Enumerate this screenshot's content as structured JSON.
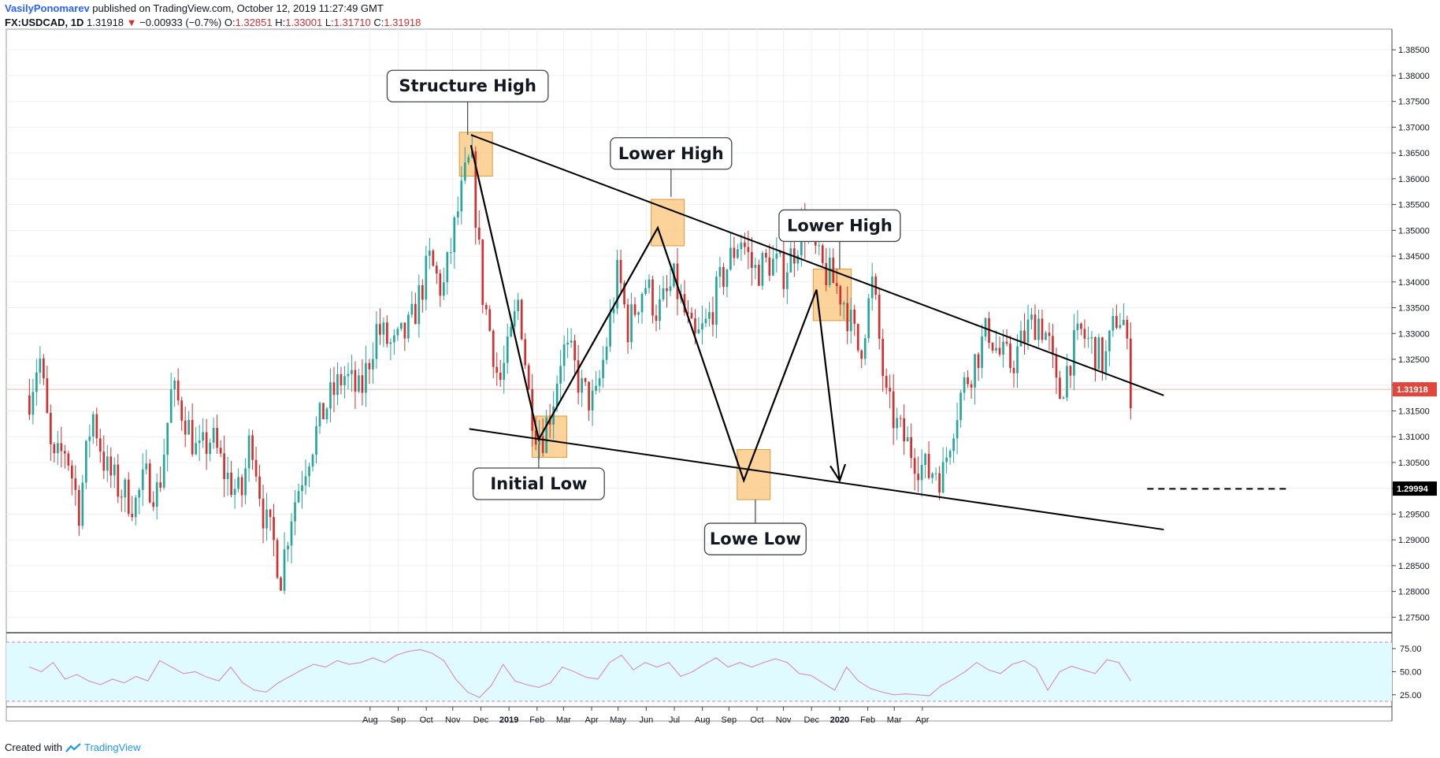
{
  "header": {
    "author": "VasilyPonomarev",
    "published_text": " published on TradingView.com, October 12, 2019 11:27:49 GMT"
  },
  "ohlc": {
    "symbol": "FX:USDCAD, 1D",
    "last": "1.31918",
    "arrow": "▼",
    "change": "−0.00933 (−0.7%)",
    "o_label": "O:",
    "o_value": "1.32851",
    "h_label": "H:",
    "h_value": "1.33001",
    "l_label": "L:",
    "l_value": "1.31710",
    "c_label": "C:",
    "c_value": "1.31918"
  },
  "footer": {
    "created_with": "Created with",
    "brand": "TradingView"
  },
  "colors": {
    "up": "#26a69a",
    "down": "#d32f2f",
    "box_fill": "#fbc57a",
    "box_stroke": "#e0973a",
    "rsi_band": "#e0fbff",
    "rsi_line": "#d592c8",
    "price_tag": "#e0463b",
    "grid": "#eef0f3"
  },
  "chart_data": {
    "type": "candlestick",
    "price_axis": {
      "ylim": [
        1.272,
        1.389
      ],
      "ticks": [
        "1.27500",
        "1.28000",
        "1.28500",
        "1.29000",
        "1.29500",
        "1.30000",
        "1.30500",
        "1.31000",
        "1.31500",
        "1.32000",
        "1.32500",
        "1.33000",
        "1.33500",
        "1.34000",
        "1.34500",
        "1.35000",
        "1.35500",
        "1.36000",
        "1.36500",
        "1.37000",
        "1.37500",
        "1.38000",
        "1.38500"
      ],
      "last_price_label": "1.31918",
      "target_label": "1.29994"
    },
    "time_axis": {
      "labels": [
        "Aug",
        "Sep",
        "Oct",
        "Nov",
        "Dec",
        "2019",
        "Feb",
        "Mar",
        "Apr",
        "May",
        "Jun",
        "Jul",
        "Aug",
        "Sep",
        "Oct",
        "Nov",
        "Dec",
        "2020",
        "Feb",
        "Mar",
        "Apr"
      ],
      "bold_labels": [
        "2019",
        "2020"
      ]
    },
    "rsi_axis": {
      "ticks": [
        "25.00",
        "50.00",
        "75.00"
      ],
      "ylim": [
        18,
        82
      ]
    },
    "price_path": [
      [
        2018.55,
        1.318
      ],
      [
        2018.58,
        1.326
      ],
      [
        2018.62,
        1.304
      ],
      [
        2018.66,
        1.308
      ],
      [
        2018.7,
        1.296
      ],
      [
        2018.74,
        1.315
      ],
      [
        2018.78,
        1.304
      ],
      [
        2018.82,
        1.3
      ],
      [
        2018.87,
        1.297
      ],
      [
        2018.9,
        1.302
      ],
      [
        2018.94,
        1.299
      ],
      [
        2018.98,
        1.319
      ],
      [
        2019.02,
        1.314
      ],
      [
        2019.06,
        1.306
      ],
      [
        2019.1,
        1.31
      ],
      [
        2019.14,
        1.303
      ],
      [
        2019.19,
        1.298
      ],
      [
        2019.22,
        1.311
      ],
      [
        2019.26,
        1.294
      ],
      [
        2019.29,
        1.289
      ],
      [
        2019.31,
        1.283
      ],
      [
        2019.34,
        1.295
      ],
      [
        2019.39,
        1.306
      ],
      [
        2019.44,
        1.315
      ],
      [
        2019.5,
        1.322
      ],
      [
        2019.55,
        1.318
      ],
      [
        2019.6,
        1.331
      ],
      [
        2019.65,
        1.327
      ],
      [
        2019.7,
        1.331
      ],
      [
        2019.76,
        1.344
      ],
      [
        2019.8,
        1.338
      ],
      [
        2019.84,
        1.352
      ],
      [
        2019.87,
        1.361
      ],
      [
        2019.885,
        1.364
      ],
      [
        2019.89,
        1.361
      ],
      [
        2019.905,
        1.349
      ],
      [
        2019.92,
        1.338
      ],
      [
        2019.95,
        1.328
      ],
      [
        2019.97,
        1.32
      ],
      [
        2020.0,
        1.327
      ],
      [
        2020.03,
        1.337
      ],
      [
        2020.06,
        1.318
      ],
      [
        2020.08,
        1.312
      ],
      [
        2020.1,
        1.31
      ],
      [
        2020.13,
        1.316
      ],
      [
        2020.16,
        1.327
      ],
      [
        2020.19,
        1.325
      ],
      [
        2020.22,
        1.319
      ],
      [
        2020.26,
        1.316
      ],
      [
        2020.3,
        1.33
      ],
      [
        2020.33,
        1.342
      ],
      [
        2020.36,
        1.331
      ],
      [
        2020.41,
        1.34
      ],
      [
        2020.45,
        1.334
      ],
      [
        2020.5,
        1.34
      ],
      [
        2020.56,
        1.328
      ],
      [
        2020.6,
        1.332
      ],
      [
        2020.64,
        1.34
      ],
      [
        2020.7,
        1.349
      ],
      [
        2020.74,
        1.342
      ],
      [
        2020.79,
        1.344
      ],
      [
        2020.83,
        1.342
      ],
      [
        2020.86,
        1.346
      ],
      [
        2020.89,
        1.351
      ],
      [
        2020.91,
        1.349
      ],
      [
        2020.94,
        1.343
      ],
      [
        2020.97,
        1.341
      ],
      [
        2021.01,
        1.337
      ],
      [
        2021.06,
        1.326
      ],
      [
        2021.1,
        1.34
      ],
      [
        2021.14,
        1.317
      ],
      [
        2021.18,
        1.311
      ],
      [
        2021.22,
        1.307
      ],
      [
        2021.25,
        1.304
      ],
      [
        2021.27,
        1.303
      ],
      [
        2021.29,
        1.304
      ],
      [
        2021.31,
        1.302
      ],
      [
        2021.34,
        1.312
      ],
      [
        2021.37,
        1.319
      ],
      [
        2021.41,
        1.325
      ],
      [
        2021.45,
        1.331
      ],
      [
        2021.48,
        1.326
      ],
      [
        2021.52,
        1.324
      ],
      [
        2021.57,
        1.331
      ],
      [
        2021.6,
        1.333
      ],
      [
        2021.63,
        1.329
      ],
      [
        2021.66,
        1.317
      ],
      [
        2021.7,
        1.326
      ],
      [
        2021.73,
        1.33
      ],
      [
        2021.77,
        1.327
      ],
      [
        2021.8,
        1.324
      ],
      [
        2021.84,
        1.334
      ],
      [
        2021.86,
        1.332
      ],
      [
        2021.88,
        1.319
      ]
    ],
    "rsi_values": [
      55,
      50,
      60,
      42,
      47,
      40,
      36,
      42,
      38,
      45,
      40,
      62,
      55,
      48,
      50,
      44,
      40,
      55,
      38,
      30,
      28,
      38,
      45,
      52,
      58,
      55,
      62,
      58,
      60,
      65,
      60,
      68,
      72,
      74,
      70,
      62,
      42,
      28,
      22,
      35,
      58,
      40,
      36,
      33,
      38,
      55,
      50,
      44,
      42,
      60,
      68,
      52,
      60,
      55,
      60,
      45,
      50,
      58,
      65,
      55,
      60,
      55,
      60,
      64,
      60,
      48,
      46,
      38,
      30,
      55,
      40,
      32,
      28,
      25,
      26,
      25,
      24,
      35,
      42,
      50,
      60,
      52,
      48,
      58,
      62,
      54,
      30,
      50,
      56,
      52,
      48,
      63,
      60,
      40
    ],
    "trend_lines": [
      {
        "from": [
          2019.885,
          1.3685
        ],
        "to": [
          2021.98,
          1.318
        ]
      },
      {
        "from": [
          2019.88,
          1.3115
        ],
        "to": [
          2021.98,
          1.292
        ]
      },
      {
        "from": [
          2021.93,
          1.2999
        ],
        "to": [
          2022.35,
          1.2999
        ],
        "dashed": true
      }
    ],
    "zigzag": [
      [
        2019.885,
        1.3665
      ],
      [
        2020.09,
        1.3095
      ],
      [
        2020.45,
        1.3505
      ],
      [
        2020.71,
        1.3015
      ],
      [
        2020.93,
        1.3385
      ],
      [
        2021.0,
        1.3015
      ]
    ],
    "zones": [
      {
        "x0": 2019.85,
        "x1": 2019.95,
        "y0": 1.3605,
        "y1": 1.369
      },
      {
        "x0": 2020.07,
        "x1": 2020.175,
        "y0": 1.306,
        "y1": 1.314
      },
      {
        "x0": 2020.43,
        "x1": 2020.53,
        "y0": 1.347,
        "y1": 1.356
      },
      {
        "x0": 2020.69,
        "x1": 2020.79,
        "y0": 1.2978,
        "y1": 1.3075
      },
      {
        "x0": 2020.92,
        "x1": 2021.035,
        "y0": 1.3325,
        "y1": 1.3425
      }
    ],
    "annotations": [
      {
        "text": "Structure High",
        "anchor": [
          2019.875,
          1.3685
        ]
      },
      {
        "text": "Initial Low",
        "anchor": [
          2020.09,
          1.3085
        ]
      },
      {
        "text": "Lower High",
        "anchor": [
          2020.49,
          1.3565
        ]
      },
      {
        "text": "Lower High",
        "anchor": [
          2021.0,
          1.3425
        ]
      },
      {
        "text": "Lowe Low",
        "anchor": [
          2020.745,
          1.2978
        ]
      }
    ]
  }
}
